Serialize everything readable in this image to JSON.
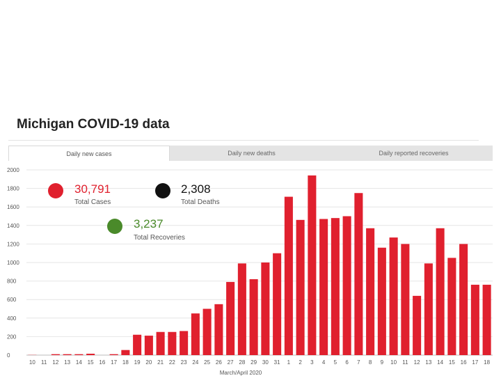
{
  "page": {
    "title": "Michigan COVID-19 data"
  },
  "tabs": [
    {
      "label": "Daily new cases",
      "active": true
    },
    {
      "label": "Daily new deaths",
      "active": false
    },
    {
      "label": "Daily reported recoveries",
      "active": false
    }
  ],
  "stats": {
    "cases": {
      "value": "30,791",
      "label": "Total Cases",
      "color": "#e0202e"
    },
    "deaths": {
      "value": "2,308",
      "label": "Total Deaths",
      "color": "#111111"
    },
    "recoveries": {
      "value": "3,237",
      "label": "Total Recoveries",
      "color": "#4a8a2a"
    }
  },
  "chart_data": {
    "type": "bar",
    "title": "",
    "xlabel": "March/April 2020",
    "ylabel": "",
    "ylim": [
      0,
      2000
    ],
    "yticks": [
      0,
      200,
      400,
      600,
      800,
      1000,
      1200,
      1400,
      1600,
      1800,
      2000
    ],
    "bar_color": "#e0202e",
    "grid": true,
    "categories": [
      "10",
      "11",
      "12",
      "13",
      "14",
      "15",
      "16",
      "17",
      "18",
      "19",
      "20",
      "21",
      "22",
      "23",
      "24",
      "25",
      "26",
      "27",
      "28",
      "29",
      "30",
      "31",
      "1",
      "2",
      "3",
      "4",
      "5",
      "6",
      "7",
      "8",
      "9",
      "10",
      "11",
      "12",
      "13",
      "14",
      "15",
      "16",
      "17",
      "18"
    ],
    "values": [
      2,
      0,
      10,
      10,
      10,
      15,
      0,
      10,
      55,
      220,
      210,
      250,
      250,
      260,
      450,
      500,
      550,
      790,
      990,
      820,
      1000,
      1100,
      1710,
      1460,
      1940,
      1470,
      1480,
      1500,
      1750,
      1370,
      1160,
      1270,
      1200,
      640,
      990,
      1370,
      1050,
      1200,
      760,
      760
    ]
  }
}
